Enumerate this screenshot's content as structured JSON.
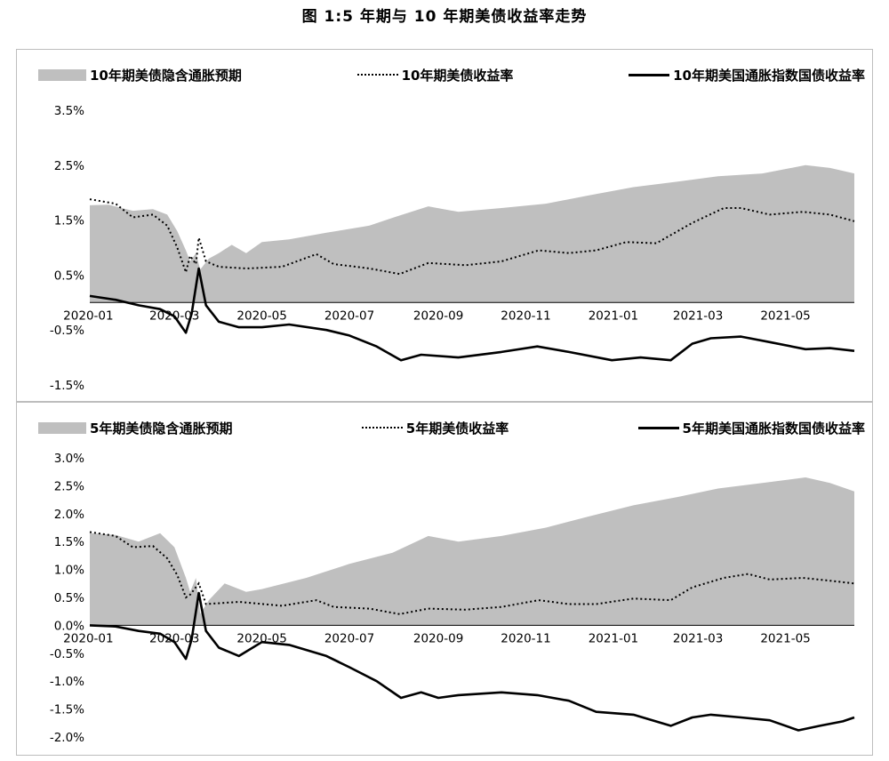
{
  "figure_title": "图 1:5 年期与 10 年期美债收益率走势",
  "chart_data": [
    {
      "type": "area",
      "legend": {
        "area": "10年期美债隐含通胀预期",
        "dotted": "10年期美债收益率",
        "line": "10年期美国通胀指数国债收益率"
      },
      "legend_position": "top",
      "x_ticks": [
        "2020-01",
        "2020-03",
        "2020-05",
        "2020-07",
        "2020-09",
        "2020-11",
        "2021-01",
        "2021-03",
        "2021-05"
      ],
      "y_ticks": [
        "3.5%",
        "2.5%",
        "1.5%",
        "0.5%",
        "-0.5%",
        "-1.5%"
      ],
      "ylim": [
        -1.5,
        3.5
      ],
      "x_range": [
        "2020-01-02",
        "2021-06-18"
      ],
      "grid": false,
      "series": [
        {
          "name": "10年期美债隐含通胀预期",
          "style": "area",
          "color": "#bfbfbf",
          "points": [
            [
              "2020-01-02",
              1.77
            ],
            [
              "2020-01-15",
              1.78
            ],
            [
              "2020-02-01",
              1.67
            ],
            [
              "2020-02-15",
              1.7
            ],
            [
              "2020-02-25",
              1.6
            ],
            [
              "2020-03-03",
              1.3
            ],
            [
              "2020-03-09",
              0.95
            ],
            [
              "2020-03-12",
              0.75
            ],
            [
              "2020-03-16",
              0.9
            ],
            [
              "2020-03-19",
              0.6
            ],
            [
              "2020-03-25",
              0.8
            ],
            [
              "2020-04-01",
              0.9
            ],
            [
              "2020-04-10",
              1.05
            ],
            [
              "2020-04-20",
              0.9
            ],
            [
              "2020-05-01",
              1.1
            ],
            [
              "2020-05-20",
              1.15
            ],
            [
              "2020-06-15",
              1.27
            ],
            [
              "2020-07-15",
              1.4
            ],
            [
              "2020-08-01",
              1.55
            ],
            [
              "2020-08-25",
              1.75
            ],
            [
              "2020-09-15",
              1.65
            ],
            [
              "2020-10-15",
              1.72
            ],
            [
              "2020-11-15",
              1.8
            ],
            [
              "2020-12-15",
              1.95
            ],
            [
              "2021-01-15",
              2.1
            ],
            [
              "2021-02-15",
              2.2
            ],
            [
              "2021-03-15",
              2.3
            ],
            [
              "2021-04-15",
              2.35
            ],
            [
              "2021-05-15",
              2.5
            ],
            [
              "2021-06-01",
              2.45
            ],
            [
              "2021-06-18",
              2.35
            ]
          ]
        },
        {
          "name": "10年期美债收益率",
          "style": "dotted",
          "color": "#000000",
          "points": [
            [
              "2020-01-02",
              1.88
            ],
            [
              "2020-01-20",
              1.8
            ],
            [
              "2020-02-01",
              1.55
            ],
            [
              "2020-02-15",
              1.6
            ],
            [
              "2020-02-25",
              1.4
            ],
            [
              "2020-03-03",
              1.0
            ],
            [
              "2020-03-09",
              0.55
            ],
            [
              "2020-03-12",
              0.85
            ],
            [
              "2020-03-16",
              0.7
            ],
            [
              "2020-03-18",
              1.18
            ],
            [
              "2020-03-23",
              0.75
            ],
            [
              "2020-04-01",
              0.65
            ],
            [
              "2020-04-20",
              0.62
            ],
            [
              "2020-05-15",
              0.65
            ],
            [
              "2020-06-08",
              0.88
            ],
            [
              "2020-06-20",
              0.7
            ],
            [
              "2020-07-15",
              0.62
            ],
            [
              "2020-08-05",
              0.52
            ],
            [
              "2020-08-25",
              0.72
            ],
            [
              "2020-09-20",
              0.68
            ],
            [
              "2020-10-15",
              0.75
            ],
            [
              "2020-11-10",
              0.95
            ],
            [
              "2020-12-01",
              0.9
            ],
            [
              "2020-12-20",
              0.95
            ],
            [
              "2021-01-10",
              1.1
            ],
            [
              "2021-01-31",
              1.08
            ],
            [
              "2021-02-25",
              1.45
            ],
            [
              "2021-03-19",
              1.72
            ],
            [
              "2021-03-31",
              1.72
            ],
            [
              "2021-04-20",
              1.6
            ],
            [
              "2021-05-13",
              1.65
            ],
            [
              "2021-06-01",
              1.6
            ],
            [
              "2021-06-18",
              1.48
            ]
          ]
        },
        {
          "name": "10年期美国通胀指数国债收益率",
          "style": "solid",
          "color": "#000000",
          "points": [
            [
              "2020-01-02",
              0.12
            ],
            [
              "2020-01-20",
              0.05
            ],
            [
              "2020-02-05",
              -0.05
            ],
            [
              "2020-02-20",
              -0.12
            ],
            [
              "2020-03-01",
              -0.25
            ],
            [
              "2020-03-09",
              -0.55
            ],
            [
              "2020-03-13",
              -0.2
            ],
            [
              "2020-03-18",
              0.62
            ],
            [
              "2020-03-23",
              -0.05
            ],
            [
              "2020-04-01",
              -0.35
            ],
            [
              "2020-04-15",
              -0.45
            ],
            [
              "2020-05-01",
              -0.45
            ],
            [
              "2020-05-20",
              -0.4
            ],
            [
              "2020-06-15",
              -0.5
            ],
            [
              "2020-07-01",
              -0.6
            ],
            [
              "2020-07-20",
              -0.8
            ],
            [
              "2020-08-06",
              -1.05
            ],
            [
              "2020-08-20",
              -0.95
            ],
            [
              "2020-09-15",
              -1.0
            ],
            [
              "2020-10-15",
              -0.9
            ],
            [
              "2020-11-09",
              -0.8
            ],
            [
              "2020-12-01",
              -0.9
            ],
            [
              "2020-12-31",
              -1.05
            ],
            [
              "2021-01-20",
              -1.0
            ],
            [
              "2021-02-10",
              -1.05
            ],
            [
              "2021-02-25",
              -0.75
            ],
            [
              "2021-03-10",
              -0.65
            ],
            [
              "2021-03-31",
              -0.62
            ],
            [
              "2021-04-20",
              -0.72
            ],
            [
              "2021-05-15",
              -0.85
            ],
            [
              "2021-06-01",
              -0.83
            ],
            [
              "2021-06-18",
              -0.88
            ]
          ]
        }
      ]
    },
    {
      "type": "area",
      "legend": {
        "area": "5年期美债隐含通胀预期",
        "dotted": "5年期美债收益率",
        "line": "5年期美国通胀指数国债收益率"
      },
      "legend_position": "top",
      "x_ticks": [
        "2020-01",
        "2020-03",
        "2020-05",
        "2020-07",
        "2020-09",
        "2020-11",
        "2021-01",
        "2021-03",
        "2021-05"
      ],
      "y_ticks": [
        "3.0%",
        "2.5%",
        "2.0%",
        "1.5%",
        "1.0%",
        "0.5%",
        "0.0%",
        "-0.5%",
        "-1.0%",
        "-1.5%",
        "-2.0%"
      ],
      "ylim": [
        -2.0,
        3.0
      ],
      "x_range": [
        "2020-01-02",
        "2021-06-18"
      ],
      "grid": false,
      "series": [
        {
          "name": "5年期美债隐含通胀预期",
          "style": "area",
          "color": "#bfbfbf",
          "points": [
            [
              "2020-01-02",
              1.65
            ],
            [
              "2020-01-20",
              1.62
            ],
            [
              "2020-02-05",
              1.5
            ],
            [
              "2020-02-20",
              1.65
            ],
            [
              "2020-03-01",
              1.4
            ],
            [
              "2020-03-09",
              0.85
            ],
            [
              "2020-03-12",
              0.6
            ],
            [
              "2020-03-16",
              0.85
            ],
            [
              "2020-03-19",
              0.2
            ],
            [
              "2020-03-25",
              0.45
            ],
            [
              "2020-04-05",
              0.75
            ],
            [
              "2020-04-20",
              0.6
            ],
            [
              "2020-05-01",
              0.65
            ],
            [
              "2020-06-01",
              0.85
            ],
            [
              "2020-07-01",
              1.1
            ],
            [
              "2020-07-31",
              1.3
            ],
            [
              "2020-08-25",
              1.6
            ],
            [
              "2020-09-15",
              1.5
            ],
            [
              "2020-10-15",
              1.6
            ],
            [
              "2020-11-15",
              1.75
            ],
            [
              "2020-12-15",
              1.95
            ],
            [
              "2021-01-15",
              2.15
            ],
            [
              "2021-02-15",
              2.3
            ],
            [
              "2021-03-15",
              2.45
            ],
            [
              "2021-04-15",
              2.55
            ],
            [
              "2021-05-15",
              2.65
            ],
            [
              "2021-06-01",
              2.55
            ],
            [
              "2021-06-18",
              2.4
            ]
          ]
        },
        {
          "name": "5年期美债收益率",
          "style": "dotted",
          "color": "#000000",
          "points": [
            [
              "2020-01-02",
              1.67
            ],
            [
              "2020-01-20",
              1.6
            ],
            [
              "2020-02-01",
              1.4
            ],
            [
              "2020-02-15",
              1.42
            ],
            [
              "2020-02-25",
              1.2
            ],
            [
              "2020-03-03",
              0.9
            ],
            [
              "2020-03-09",
              0.5
            ],
            [
              "2020-03-12",
              0.55
            ],
            [
              "2020-03-18",
              0.75
            ],
            [
              "2020-03-23",
              0.38
            ],
            [
              "2020-04-15",
              0.42
            ],
            [
              "2020-05-15",
              0.35
            ],
            [
              "2020-06-08",
              0.45
            ],
            [
              "2020-06-20",
              0.33
            ],
            [
              "2020-07-15",
              0.3
            ],
            [
              "2020-08-05",
              0.2
            ],
            [
              "2020-08-25",
              0.3
            ],
            [
              "2020-09-20",
              0.28
            ],
            [
              "2020-10-15",
              0.33
            ],
            [
              "2020-11-10",
              0.45
            ],
            [
              "2020-12-01",
              0.38
            ],
            [
              "2020-12-20",
              0.38
            ],
            [
              "2021-01-15",
              0.48
            ],
            [
              "2021-02-10",
              0.45
            ],
            [
              "2021-02-25",
              0.68
            ],
            [
              "2021-03-19",
              0.85
            ],
            [
              "2021-04-05",
              0.92
            ],
            [
              "2021-04-20",
              0.82
            ],
            [
              "2021-05-13",
              0.85
            ],
            [
              "2021-06-01",
              0.8
            ],
            [
              "2021-06-18",
              0.75
            ]
          ]
        },
        {
          "name": "5年期美国通胀指数国债收益率",
          "style": "solid",
          "color": "#000000",
          "points": [
            [
              "2020-01-02",
              0.0
            ],
            [
              "2020-01-20",
              -0.02
            ],
            [
              "2020-02-05",
              -0.1
            ],
            [
              "2020-02-20",
              -0.15
            ],
            [
              "2020-03-01",
              -0.3
            ],
            [
              "2020-03-09",
              -0.6
            ],
            [
              "2020-03-13",
              -0.25
            ],
            [
              "2020-03-18",
              0.58
            ],
            [
              "2020-03-23",
              -0.1
            ],
            [
              "2020-04-01",
              -0.4
            ],
            [
              "2020-04-15",
              -0.55
            ],
            [
              "2020-05-01",
              -0.3
            ],
            [
              "2020-05-20",
              -0.35
            ],
            [
              "2020-06-15",
              -0.55
            ],
            [
              "2020-07-01",
              -0.75
            ],
            [
              "2020-07-20",
              -1.0
            ],
            [
              "2020-08-06",
              -1.3
            ],
            [
              "2020-08-20",
              -1.2
            ],
            [
              "2020-09-01",
              -1.3
            ],
            [
              "2020-09-15",
              -1.25
            ],
            [
              "2020-10-15",
              -1.2
            ],
            [
              "2020-11-09",
              -1.25
            ],
            [
              "2020-12-01",
              -1.35
            ],
            [
              "2020-12-20",
              -1.55
            ],
            [
              "2021-01-15",
              -1.6
            ],
            [
              "2021-02-10",
              -1.8
            ],
            [
              "2021-02-25",
              -1.65
            ],
            [
              "2021-03-10",
              -1.6
            ],
            [
              "2021-03-31",
              -1.65
            ],
            [
              "2021-04-20",
              -1.7
            ],
            [
              "2021-05-10",
              -1.88
            ],
            [
              "2021-05-25",
              -1.8
            ],
            [
              "2021-06-10",
              -1.72
            ],
            [
              "2021-06-18",
              -1.65
            ]
          ]
        }
      ]
    }
  ]
}
